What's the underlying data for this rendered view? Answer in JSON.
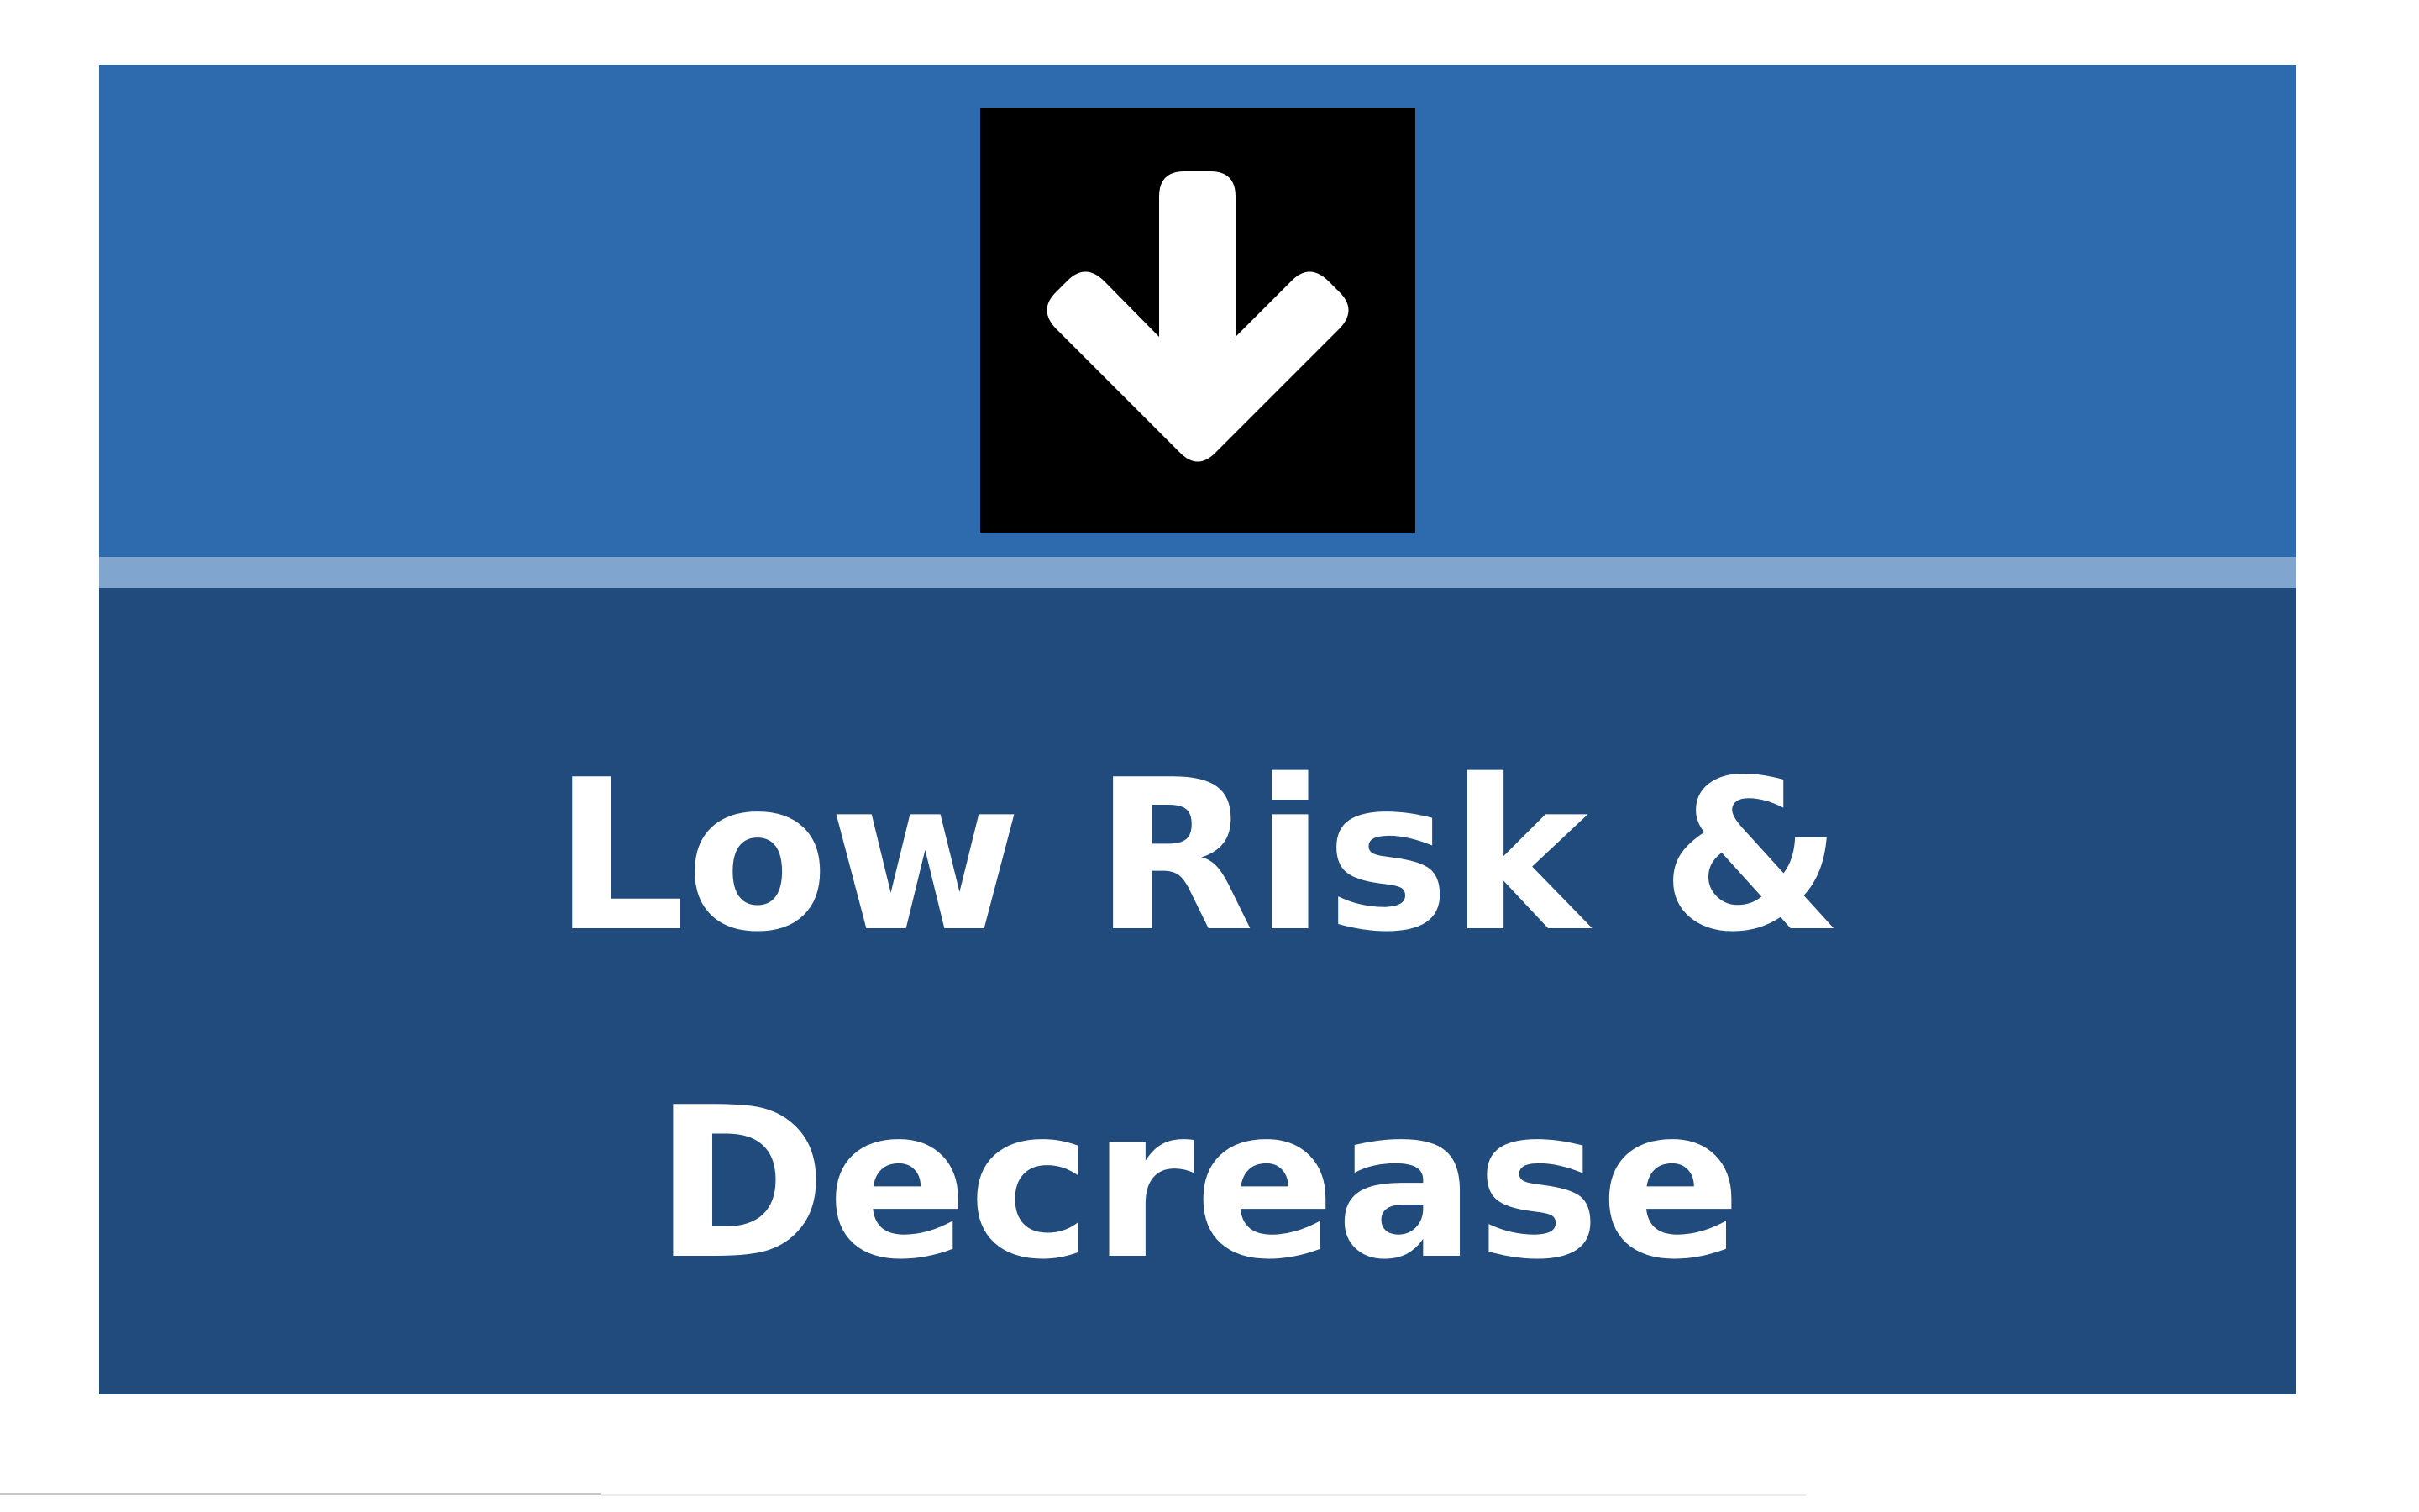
{
  "sign": {
    "line1": "Low Risk &",
    "line2": "Decrease",
    "icon": "arrow-down-icon"
  },
  "colors": {
    "page_background": "#ffffff",
    "top_band": "#2e6bae",
    "divider": "#80a6cf",
    "bottom_band": "#214b7c",
    "icon_box": "#000000",
    "icon_arrow": "#ffffff",
    "text": "#ffffff"
  }
}
